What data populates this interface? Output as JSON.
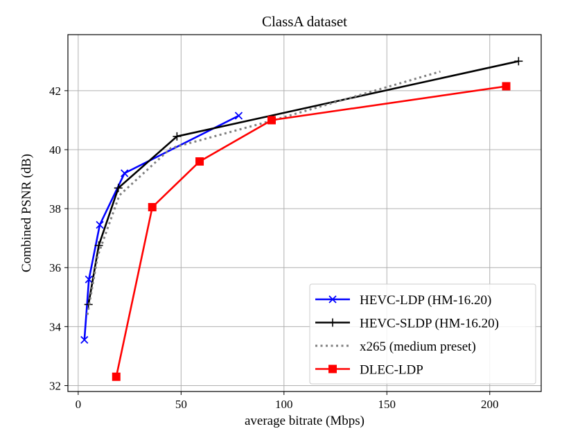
{
  "chart_data": {
    "type": "line",
    "title": "ClassA dataset",
    "xlabel": "average bitrate (Mbps)",
    "ylabel": "Combined PSNR (dB)",
    "xlim": [
      -5,
      225
    ],
    "ylim": [
      31.8,
      43.9
    ],
    "xticks": [
      0,
      50,
      100,
      150,
      200
    ],
    "yticks": [
      32,
      34,
      36,
      38,
      40,
      42
    ],
    "grid": true,
    "legend_position": "lower-right",
    "series": [
      {
        "name": "HEVC-LDP (HM-16.20)",
        "color": "#0000ff",
        "style": "solid",
        "marker": "x",
        "x": [
          3.0,
          5.2,
          10.5,
          22.5,
          78.0
        ],
        "y": [
          33.55,
          35.6,
          37.45,
          39.2,
          41.15
        ]
      },
      {
        "name": "HEVC-SLDP (HM-16.20)",
        "color": "#000000",
        "style": "solid",
        "marker": "plus",
        "x": [
          5.0,
          10.0,
          19.5,
          48.0,
          214.0
        ],
        "y": [
          34.75,
          36.75,
          38.7,
          40.45,
          43.0
        ]
      },
      {
        "name": "x265 (medium preset)",
        "color": "#808080",
        "style": "dotted",
        "marker": "none",
        "x": [
          4.5,
          9.5,
          20.0,
          45.0,
          95.0,
          176.0
        ],
        "y": [
          34.4,
          36.4,
          38.45,
          40.05,
          41.0,
          42.65
        ]
      },
      {
        "name": "DLEC-LDP",
        "color": "#ff0000",
        "style": "solid",
        "marker": "square",
        "x": [
          18.5,
          36.0,
          59.0,
          94.0,
          208.0
        ],
        "y": [
          32.3,
          38.05,
          39.6,
          41.0,
          42.15
        ]
      }
    ]
  }
}
